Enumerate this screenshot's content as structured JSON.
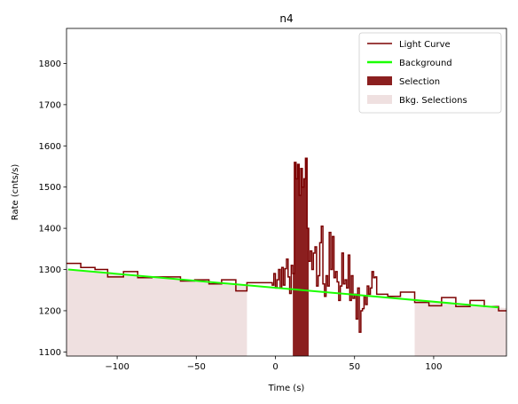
{
  "chart_data": {
    "type": "line",
    "title": "n4",
    "xlabel": "Time (s)",
    "ylabel": "Rate (cnts/s)",
    "xlim": [
      -132,
      146
    ],
    "ylim": [
      1090,
      1885
    ],
    "xticks": [
      -100,
      -50,
      0,
      50,
      100
    ],
    "xtick_labels": [
      "−100",
      "−50",
      "0",
      "50",
      "100"
    ],
    "yticks": [
      1100,
      1200,
      1300,
      1400,
      1500,
      1600,
      1700,
      1800
    ],
    "ytick_labels": [
      "1100",
      "1200",
      "1300",
      "1400",
      "1500",
      "1600",
      "1700",
      "1800"
    ],
    "grid": false,
    "legend_position": "upper right",
    "colors": {
      "light_curve": "#7b0000",
      "background": "#1aff00",
      "selection": "#8b1f1f",
      "bkg_selection": "#efe0e0"
    },
    "legend": [
      {
        "label": "Light Curve",
        "kind": "line",
        "color": "#7b0000"
      },
      {
        "label": "Background",
        "kind": "line",
        "color": "#1aff00"
      },
      {
        "label": "Selection",
        "kind": "patch",
        "color": "#8b1f1f"
      },
      {
        "label": "Bkg. Selections",
        "kind": "patch",
        "color": "#efe0e0"
      }
    ],
    "background_line": {
      "x": [
        -131,
        141
      ],
      "y": [
        1300,
        1208
      ]
    },
    "selection": {
      "x_start": 11,
      "x_end": 21
    },
    "bkg_selections": [
      {
        "x_start": -132,
        "x_end": -18
      },
      {
        "x_start": 88,
        "x_end": 146
      }
    ],
    "light_curve": {
      "x": [
        -132,
        -123,
        -114,
        -106,
        -96,
        -87,
        -78,
        -69,
        -60,
        -51,
        -42,
        -34,
        -25,
        -18,
        -10,
        -2,
        -1,
        0,
        1,
        2,
        3,
        4,
        5,
        6,
        7,
        8,
        9,
        10,
        11,
        12,
        13,
        14,
        15,
        16,
        17,
        18,
        19,
        20,
        21,
        22,
        23,
        24,
        25,
        26,
        27,
        28,
        29,
        30,
        31,
        32,
        33,
        34,
        35,
        36,
        37,
        38,
        39,
        40,
        41,
        42,
        43,
        44,
        45,
        46,
        47,
        48,
        49,
        50,
        51,
        52,
        53,
        54,
        55,
        56,
        57,
        58,
        59,
        60,
        61,
        62,
        63,
        64,
        65,
        71,
        79,
        88,
        97,
        105,
        114,
        123,
        132,
        141
      ],
      "y": [
        1315,
        1305,
        1300,
        1282,
        1295,
        1280,
        1282,
        1282,
        1272,
        1275,
        1265,
        1275,
        1248,
        1268,
        1268,
        1262,
        1290,
        1255,
        1275,
        1300,
        1255,
        1305,
        1262,
        1302,
        1325,
        1282,
        1242,
        1310,
        1290,
        1560,
        1520,
        1555,
        1480,
        1545,
        1500,
        1520,
        1570,
        1400,
        1320,
        1345,
        1300,
        1340,
        1355,
        1260,
        1285,
        1365,
        1405,
        1265,
        1235,
        1285,
        1260,
        1390,
        1300,
        1380,
        1280,
        1295,
        1270,
        1225,
        1260,
        1340,
        1265,
        1275,
        1255,
        1335,
        1225,
        1285,
        1230,
        1240,
        1180,
        1255,
        1148,
        1200,
        1205,
        1235,
        1215,
        1260,
        1240,
        1255,
        1295,
        1280,
        1282,
        1240,
        1240,
        1235,
        1245,
        1220,
        1212,
        1232,
        1210,
        1225,
        1210,
        1200
      ]
    }
  }
}
